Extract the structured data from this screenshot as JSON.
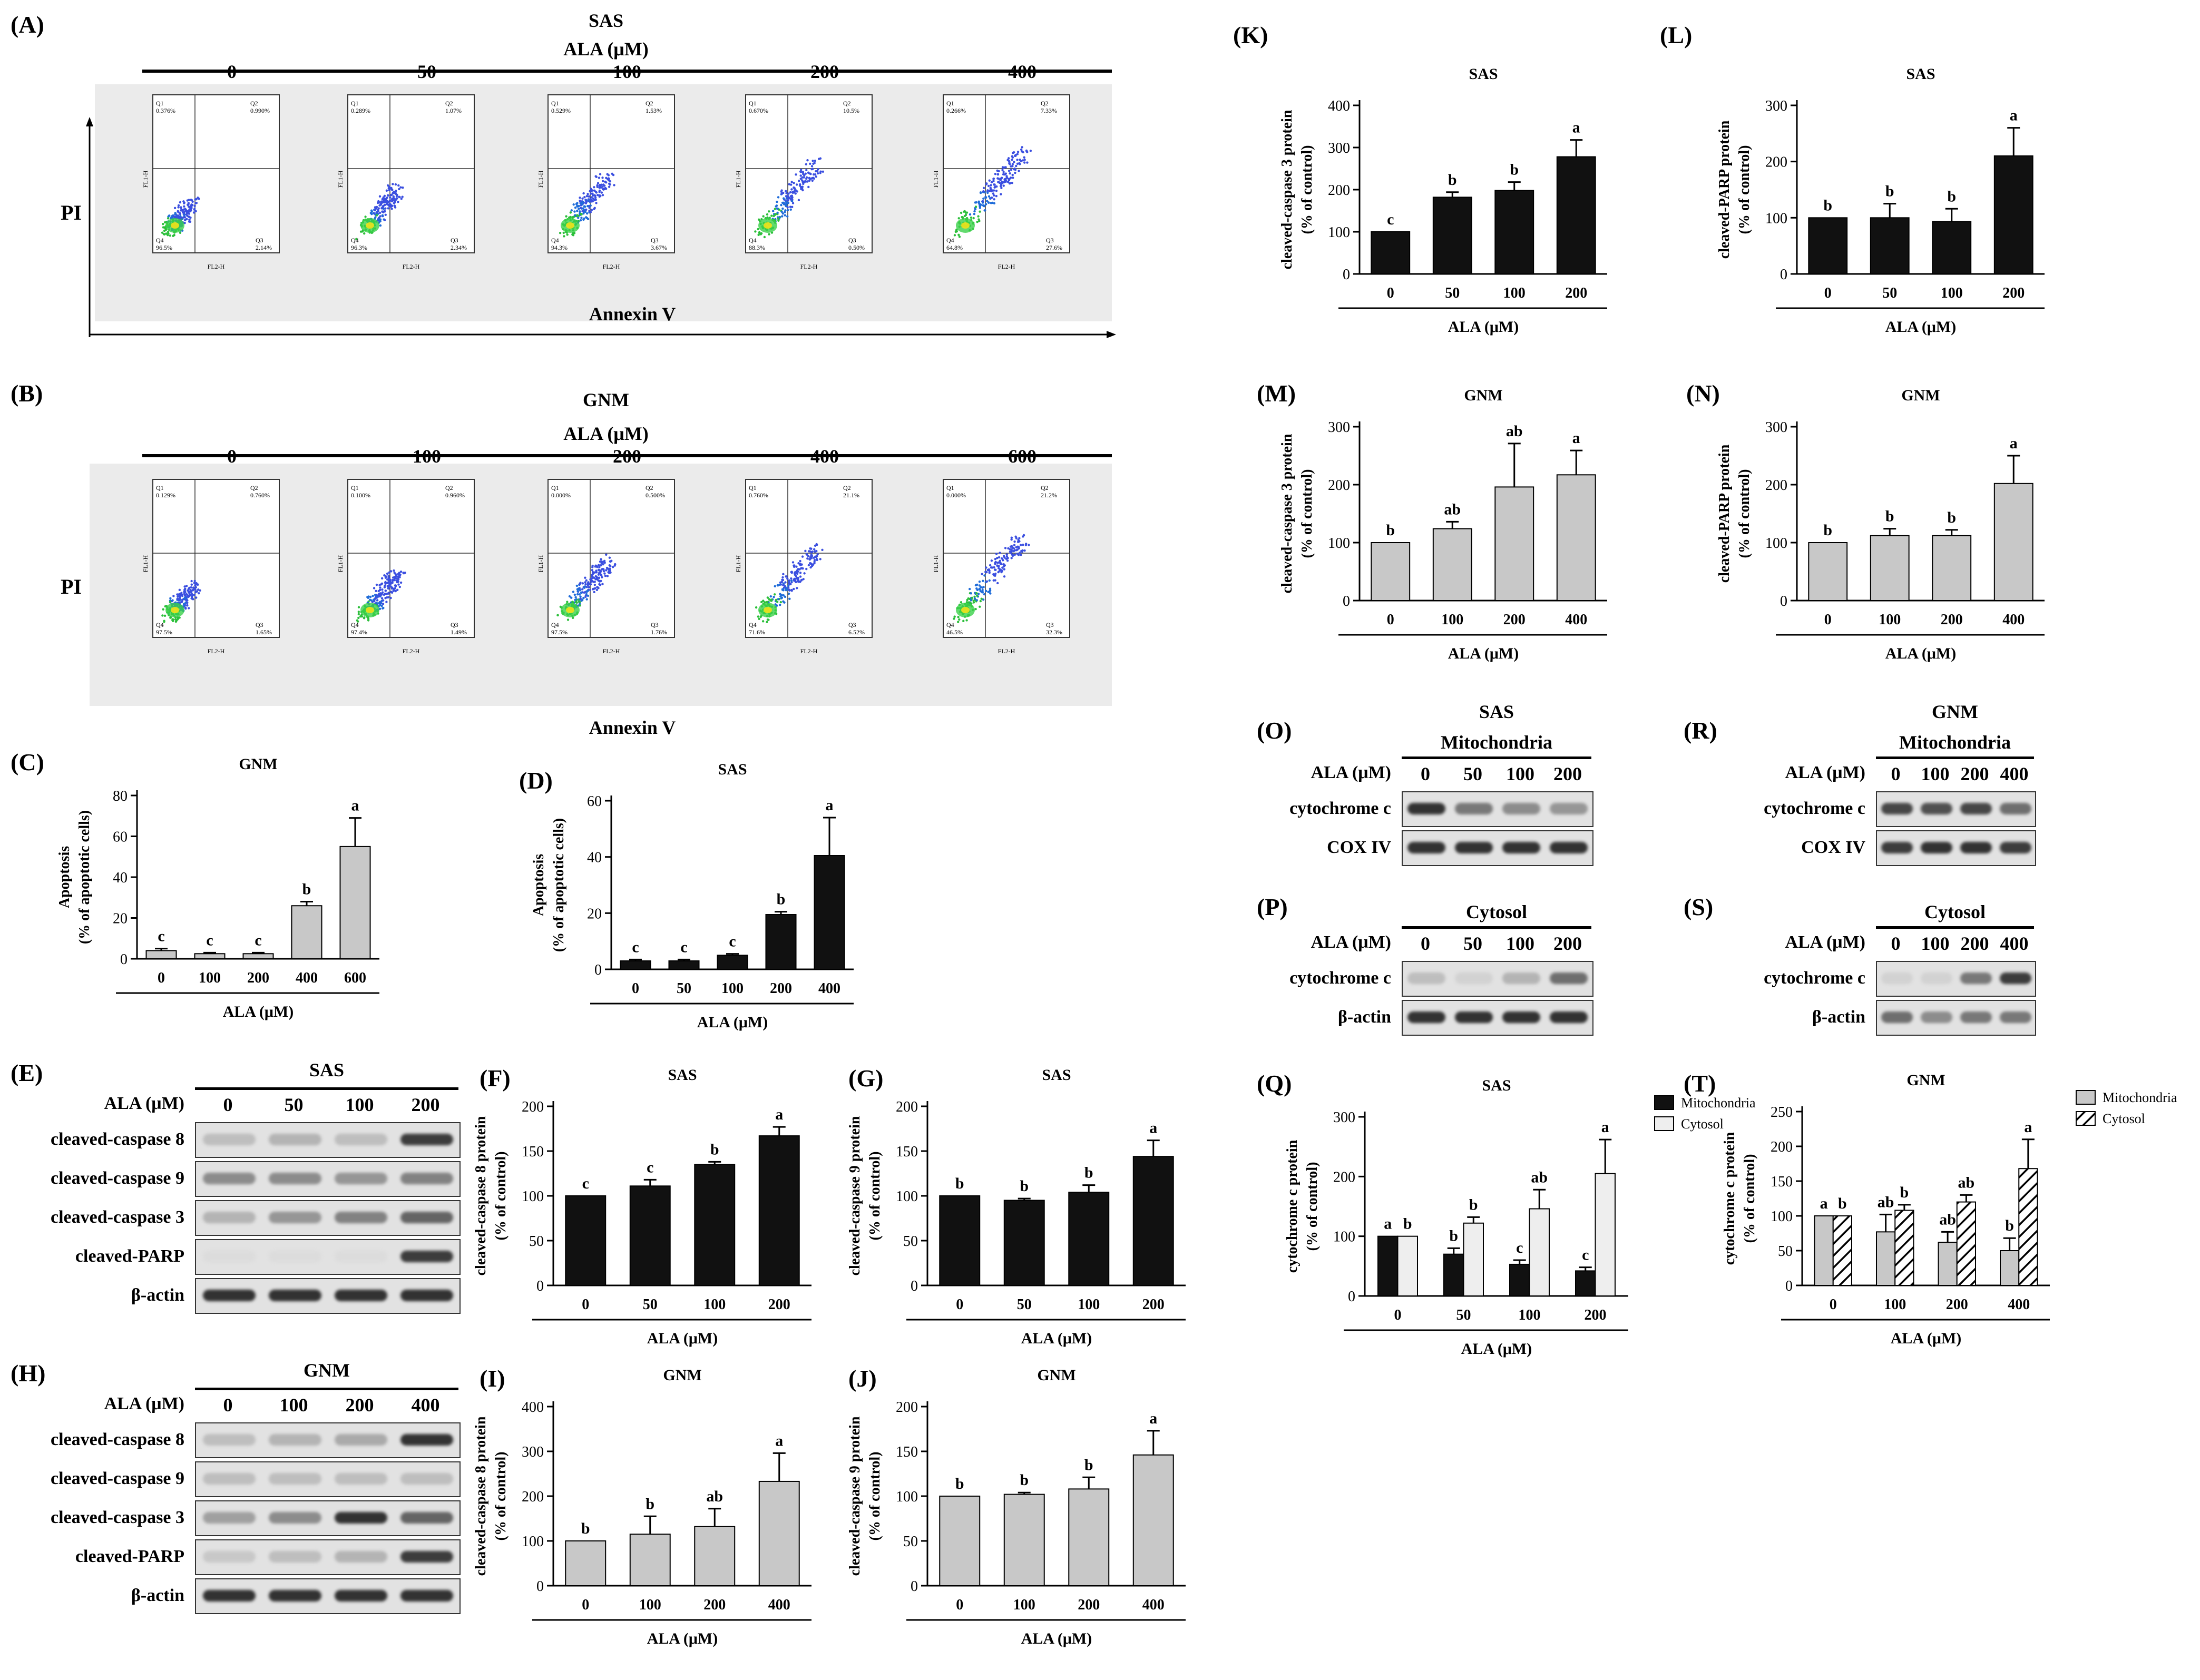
{
  "figure": {
    "panel_letters": [
      "(A)",
      "(B)",
      "(C)",
      "(D)",
      "(E)",
      "(F)",
      "(G)",
      "(H)",
      "(I)",
      "(J)",
      "(K)",
      "(L)",
      "(M)",
      "(N)",
      "(O)",
      "(P)",
      "(Q)",
      "(R)",
      "(S)",
      "(T)"
    ]
  },
  "flow": {
    "A": {
      "cell": "SAS",
      "treatment": "ALA (μM)",
      "doses": [
        "0",
        "50",
        "100",
        "200",
        "400"
      ],
      "y_axis": "PI",
      "x_axis": "Annexin V",
      "quadrants": [
        [
          "0.376%",
          "0.990%",
          "2.14%",
          "96.5%"
        ],
        [
          "0.289%",
          "1.07%",
          "2.34%",
          "96.3%"
        ],
        [
          "0.529%",
          "1.53%",
          "3.67%",
          "94.3%"
        ],
        [
          "0.670%",
          "10.5%",
          "0.50%",
          "88.3%"
        ],
        [
          "0.266%",
          "7.33%",
          "27.6%",
          "64.8%"
        ]
      ],
      "xlab": "FL2-H",
      "ylab": "FL1-H"
    },
    "B": {
      "cell": "GNM",
      "treatment": "ALA (μM)",
      "doses": [
        "0",
        "100",
        "200",
        "400",
        "600"
      ],
      "y_axis": "PI",
      "x_axis": "Annexin V",
      "quadrants": [
        [
          "0.129%",
          "0.760%",
          "1.65%",
          "97.5%"
        ],
        [
          "0.100%",
          "0.960%",
          "1.49%",
          "97.4%"
        ],
        [
          "0.000%",
          "0.500%",
          "1.76%",
          "97.5%"
        ],
        [
          "0.760%",
          "21.1%",
          "6.52%",
          "71.6%"
        ],
        [
          "0.000%",
          "21.2%",
          "32.3%",
          "46.5%"
        ]
      ],
      "xlab": "FL2-H",
      "ylab": "FL1-H"
    }
  },
  "blots": {
    "E": {
      "cell": "SAS",
      "treat_label": "ALA (μM)",
      "doses": [
        "0",
        "50",
        "100",
        "200"
      ],
      "rows": [
        "cleaved-caspase 8",
        "cleaved-caspase 9",
        "cleaved-caspase 3",
        "cleaved-PARP",
        "β-actin"
      ]
    },
    "H": {
      "cell": "GNM",
      "treat_label": "ALA (μM)",
      "doses": [
        "0",
        "100",
        "200",
        "400"
      ],
      "rows": [
        "cleaved-caspase 8",
        "cleaved-caspase 9",
        "cleaved-caspase 3",
        "cleaved-PARP",
        "β-actin"
      ]
    },
    "O": {
      "cell": "SAS",
      "fraction": "Mitochondria",
      "treat_label": "ALA (μM)",
      "doses": [
        "0",
        "50",
        "100",
        "200"
      ],
      "rows": [
        "cytochrome c",
        "COX IV"
      ]
    },
    "P": {
      "fraction": "Cytosol",
      "treat_label": "ALA (μM)",
      "doses": [
        "0",
        "50",
        "100",
        "200"
      ],
      "rows": [
        "cytochrome c",
        "β-actin"
      ]
    },
    "R": {
      "cell": "GNM",
      "fraction": "Mitochondria",
      "treat_label": "ALA (μM)",
      "doses": [
        "0",
        "100",
        "200",
        "400"
      ],
      "rows": [
        "cytochrome c",
        "COX IV"
      ]
    },
    "S": {
      "fraction": "Cytosol",
      "treat_label": "ALA (μM)",
      "doses": [
        "0",
        "100",
        "200",
        "400"
      ],
      "rows": [
        "cytochrome c",
        "β-actin"
      ]
    }
  },
  "chart_data": [
    {
      "id": "C",
      "type": "bar",
      "title": "GNM",
      "categories": [
        "0",
        "100",
        "200",
        "400",
        "600"
      ],
      "values": [
        4,
        2.5,
        2.5,
        26,
        55
      ],
      "errors": [
        1,
        0.5,
        0.5,
        2,
        14
      ],
      "letters": [
        "c",
        "c",
        "c",
        "b",
        "a"
      ],
      "ylabel": "Apoptosis\n(% of apoptotic cells)",
      "xlabel": "ALA (μM)",
      "ylim": [
        0,
        80
      ],
      "yticks": [
        0,
        20,
        40,
        60,
        80
      ],
      "color": "#c8c8c8"
    },
    {
      "id": "D",
      "type": "bar",
      "title": "SAS",
      "categories": [
        "0",
        "50",
        "100",
        "200",
        "400"
      ],
      "values": [
        3,
        3,
        5,
        19.5,
        40.5
      ],
      "errors": [
        0.5,
        0.5,
        0.5,
        1,
        13.5
      ],
      "letters": [
        "c",
        "c",
        "c",
        "b",
        "a"
      ],
      "ylabel": "Apoptosis\n(% of apoptotic cells)",
      "xlabel": "ALA (μM)",
      "ylim": [
        0,
        60
      ],
      "yticks": [
        0,
        20,
        40,
        60
      ],
      "color": "#111111"
    },
    {
      "id": "F",
      "type": "bar",
      "title": "SAS",
      "categories": [
        "0",
        "50",
        "100",
        "200"
      ],
      "values": [
        100,
        111,
        135,
        167
      ],
      "errors": [
        0,
        7,
        3,
        10
      ],
      "letters": [
        "c",
        "c",
        "b",
        "a"
      ],
      "ylabel": "cleaved-caspase 8 protein\n(% of control)",
      "xlabel": "ALA (μM)",
      "ylim": [
        0,
        200
      ],
      "yticks": [
        0,
        50,
        100,
        150,
        200
      ],
      "color": "#111111"
    },
    {
      "id": "G",
      "type": "bar",
      "title": "SAS",
      "categories": [
        "0",
        "50",
        "100",
        "200"
      ],
      "values": [
        100,
        95,
        104,
        144
      ],
      "errors": [
        0,
        2,
        8,
        18
      ],
      "letters": [
        "b",
        "b",
        "b",
        "a"
      ],
      "ylabel": "cleaved-caspase 9 protein\n(% of control)",
      "xlabel": "ALA (μM)",
      "ylim": [
        0,
        200
      ],
      "yticks": [
        0,
        50,
        100,
        150,
        200
      ],
      "color": "#111111"
    },
    {
      "id": "I",
      "type": "bar",
      "title": "GNM",
      "categories": [
        "0",
        "100",
        "200",
        "400"
      ],
      "values": [
        100,
        115,
        132,
        233
      ],
      "errors": [
        0,
        40,
        40,
        63
      ],
      "letters": [
        "b",
        "b",
        "ab",
        "a"
      ],
      "ylabel": "cleaved-caspase 8 protein\n(% of control)",
      "xlabel": "ALA (μM)",
      "ylim": [
        0,
        400
      ],
      "yticks": [
        0,
        100,
        200,
        300,
        400
      ],
      "color": "#c8c8c8"
    },
    {
      "id": "J",
      "type": "bar",
      "title": "GNM",
      "categories": [
        "0",
        "100",
        "200",
        "400"
      ],
      "values": [
        100,
        102,
        108,
        146
      ],
      "errors": [
        0,
        2,
        13,
        27
      ],
      "letters": [
        "b",
        "b",
        "b",
        "a"
      ],
      "ylabel": "cleaved-caspase 9 protein\n(% of control)",
      "xlabel": "ALA (μM)",
      "ylim": [
        0,
        200
      ],
      "yticks": [
        0,
        50,
        100,
        150,
        200
      ],
      "color": "#c8c8c8"
    },
    {
      "id": "K",
      "type": "bar",
      "title": "SAS",
      "categories": [
        "0",
        "50",
        "100",
        "200"
      ],
      "values": [
        100,
        182,
        198,
        278
      ],
      "errors": [
        0,
        12,
        20,
        40
      ],
      "letters": [
        "c",
        "b",
        "b",
        "a"
      ],
      "ylabel": "cleaved-caspase 3 protein\n(% of control)",
      "xlabel": "ALA (μM)",
      "ylim": [
        0,
        400
      ],
      "yticks": [
        0,
        100,
        200,
        300,
        400
      ],
      "color": "#111111"
    },
    {
      "id": "L",
      "type": "bar",
      "title": "SAS",
      "categories": [
        "0",
        "50",
        "100",
        "200"
      ],
      "values": [
        100,
        100,
        93,
        210
      ],
      "errors": [
        0,
        25,
        23,
        50
      ],
      "letters": [
        "b",
        "b",
        "b",
        "a"
      ],
      "ylabel": "cleaved-PARP protein\n(% of control)",
      "xlabel": "ALA (μM)",
      "ylim": [
        0,
        300
      ],
      "yticks": [
        0,
        100,
        200,
        300
      ],
      "color": "#111111"
    },
    {
      "id": "M",
      "type": "bar",
      "title": "GNM",
      "categories": [
        "0",
        "100",
        "200",
        "400"
      ],
      "values": [
        100,
        124,
        196,
        217
      ],
      "errors": [
        0,
        12,
        75,
        42
      ],
      "letters": [
        "b",
        "ab",
        "ab",
        "a"
      ],
      "ylabel": "cleaved-caspase 3 protein\n(% of control)",
      "xlabel": "ALA (μM)",
      "ylim": [
        0,
        300
      ],
      "yticks": [
        0,
        100,
        200,
        300
      ],
      "color": "#c8c8c8"
    },
    {
      "id": "N",
      "type": "bar",
      "title": "GNM",
      "categories": [
        "0",
        "100",
        "200",
        "400"
      ],
      "values": [
        100,
        112,
        112,
        202
      ],
      "errors": [
        0,
        12,
        10,
        48
      ],
      "letters": [
        "b",
        "b",
        "b",
        "a"
      ],
      "ylabel": "cleaved-PARP protein\n(% of control)",
      "xlabel": "ALA (μM)",
      "ylim": [
        0,
        300
      ],
      "yticks": [
        0,
        100,
        200,
        300
      ],
      "color": "#c8c8c8"
    },
    {
      "id": "Q",
      "type": "bar",
      "title": "SAS",
      "categories": [
        "0",
        "50",
        "100",
        "200"
      ],
      "series": [
        {
          "name": "Mitochondria",
          "values": [
            100,
            70,
            53,
            42
          ],
          "errors": [
            0,
            10,
            7,
            6
          ],
          "letters": [
            "a",
            "b",
            "c",
            "c"
          ],
          "color": "#111111"
        },
        {
          "name": "Cytosol",
          "values": [
            100,
            122,
            146,
            205
          ],
          "errors": [
            0,
            10,
            32,
            57
          ],
          "letters": [
            "b",
            "b",
            "ab",
            "a"
          ],
          "color": "#eeeeee"
        }
      ],
      "ylabel": "cytochrome c protein\n(% of control)",
      "xlabel": "ALA (μM)",
      "ylim": [
        0,
        300
      ],
      "yticks": [
        0,
        100,
        200,
        300
      ],
      "legend": "top-right"
    },
    {
      "id": "T",
      "type": "bar",
      "title": "GNM",
      "categories": [
        "0",
        "100",
        "200",
        "400"
      ],
      "series": [
        {
          "name": "Mitochondria",
          "values": [
            100,
            77,
            62,
            50
          ],
          "errors": [
            0,
            25,
            15,
            18
          ],
          "letters": [
            "a",
            "ab",
            "ab",
            "b"
          ],
          "color": "#c8c8c8"
        },
        {
          "name": "Cytosol",
          "values": [
            100,
            108,
            120,
            168
          ],
          "errors": [
            0,
            8,
            10,
            42
          ],
          "letters": [
            "b",
            "b",
            "ab",
            "a"
          ],
          "color": "hatch"
        }
      ],
      "ylabel": "cytochrome c protein\n(% of control)",
      "xlabel": "ALA (μM)",
      "ylim": [
        0,
        250
      ],
      "yticks": [
        0,
        50,
        100,
        150,
        200,
        250
      ],
      "legend": "top-right"
    }
  ]
}
